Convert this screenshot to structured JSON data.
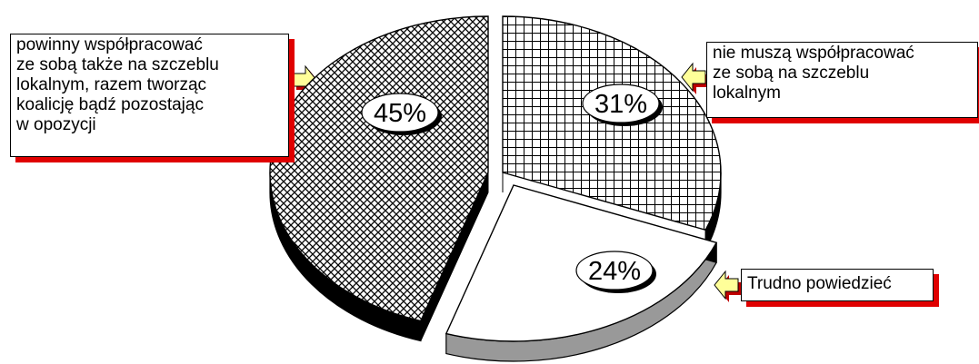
{
  "chart_data": {
    "type": "pie",
    "style": "3d-exploded",
    "slices": [
      {
        "label_lines": [
          "nie muszą współpracować",
          "ze sobą na szczeblu",
          "lokalnym"
        ],
        "value": 31,
        "value_label": "31%",
        "fill": "grid-pattern"
      },
      {
        "label_lines": [
          "Trudno powiedzieć"
        ],
        "value": 24,
        "value_label": "24%",
        "fill": "#ffffff",
        "side_color": "#999999"
      },
      {
        "label_lines": [
          "powinny współpracować",
          "ze sobą także na szczeblu",
          "lokalnym, razem tworząc",
          "koalicję bądź pozostając",
          "w opozycji"
        ],
        "value": 45,
        "value_label": "45%",
        "fill": "crosshatch-pattern",
        "side_color": "#000000"
      }
    ],
    "colors": {
      "callout_shadow": "#e00000",
      "arrow_fill": "#ffff99",
      "arrow_shadow": "#c00000"
    }
  }
}
